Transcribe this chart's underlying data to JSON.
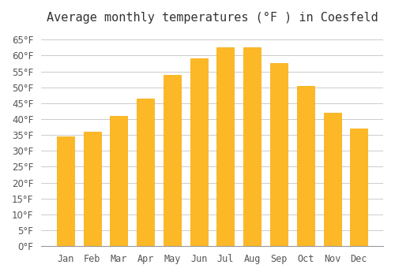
{
  "title": "Average monthly temperatures (°F ) in Coesfeld",
  "months": [
    "Jan",
    "Feb",
    "Mar",
    "Apr",
    "May",
    "Jun",
    "Jul",
    "Aug",
    "Sep",
    "Oct",
    "Nov",
    "Dec"
  ],
  "values": [
    34.5,
    36.0,
    41.0,
    46.5,
    54.0,
    59.0,
    62.5,
    62.5,
    57.5,
    50.5,
    42.0,
    37.0
  ],
  "bar_color": "#FDB827",
  "bar_edge_color": "#F5A800",
  "background_color": "#FFFFFF",
  "grid_color": "#CCCCCC",
  "title_fontsize": 11,
  "tick_label_fontsize": 8.5,
  "ylim": [
    0,
    68
  ],
  "yticks": [
    0,
    5,
    10,
    15,
    20,
    25,
    30,
    35,
    40,
    45,
    50,
    55,
    60,
    65
  ]
}
